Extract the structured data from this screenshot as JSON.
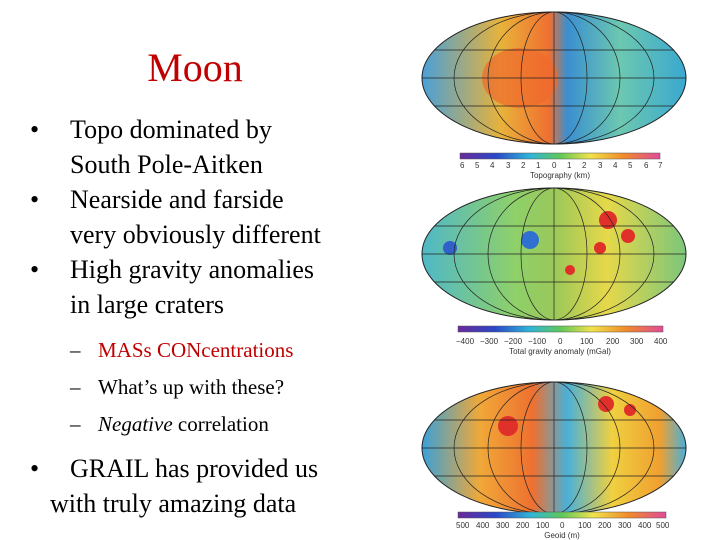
{
  "slide": {
    "title": "Moon",
    "bullets": [
      {
        "line1": "Topo dominated by",
        "line2": "South Pole-Aitken"
      },
      {
        "line1": "Nearside and farside",
        "line2": "very obviously different"
      },
      {
        "line1": "High gravity anomalies",
        "line2": "in large craters"
      }
    ],
    "sub_bullets": [
      {
        "text": "MASs CONcentrations"
      },
      {
        "text": "What’s up with these?"
      },
      {
        "em": "Negative",
        "rest": " correlation"
      }
    ],
    "final_bullet": {
      "line1": "GRAIL has provided us",
      "line2": "with truly amazing data"
    }
  },
  "maps": [
    {
      "name": "topography",
      "axis_title": "Topography (km)",
      "ticks": [
        "6",
        "5",
        "4",
        "3",
        "2",
        "1",
        "0",
        "1",
        "2",
        "3",
        "4",
        "5",
        "6",
        "7"
      ]
    },
    {
      "name": "gravity",
      "axis_title": "Total gravity anomaly (mGal)",
      "ticks": [
        "−400",
        "−300",
        "−200",
        "−100",
        "0",
        "100",
        "200",
        "300",
        "400"
      ]
    },
    {
      "name": "geoid",
      "axis_title": "Geoid (m)",
      "ticks": [
        "500",
        "400",
        "300",
        "200",
        "100",
        "0",
        "100",
        "200",
        "300",
        "400",
        "500"
      ]
    }
  ],
  "colors": {
    "title": "#c00000",
    "accent": "#c00000"
  }
}
